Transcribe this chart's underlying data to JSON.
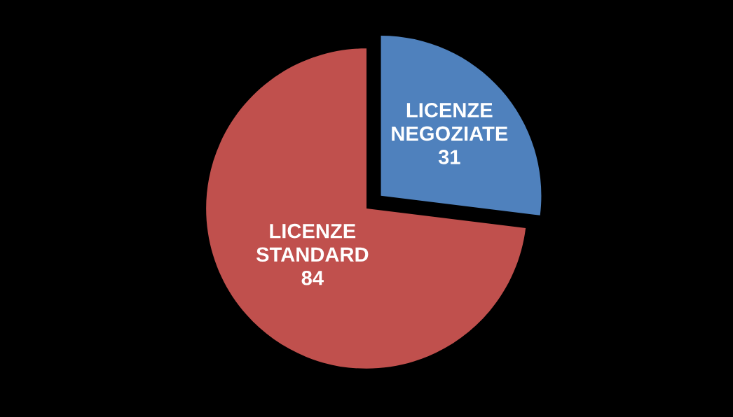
{
  "chart_data": {
    "type": "pie",
    "categories": [
      "LICENZE NEGOZIATE",
      "LICENZE STANDARD"
    ],
    "values": [
      31,
      84
    ],
    "colors": [
      "#4f81bd",
      "#c0504d"
    ],
    "data_labels": true,
    "legend": false
  }
}
